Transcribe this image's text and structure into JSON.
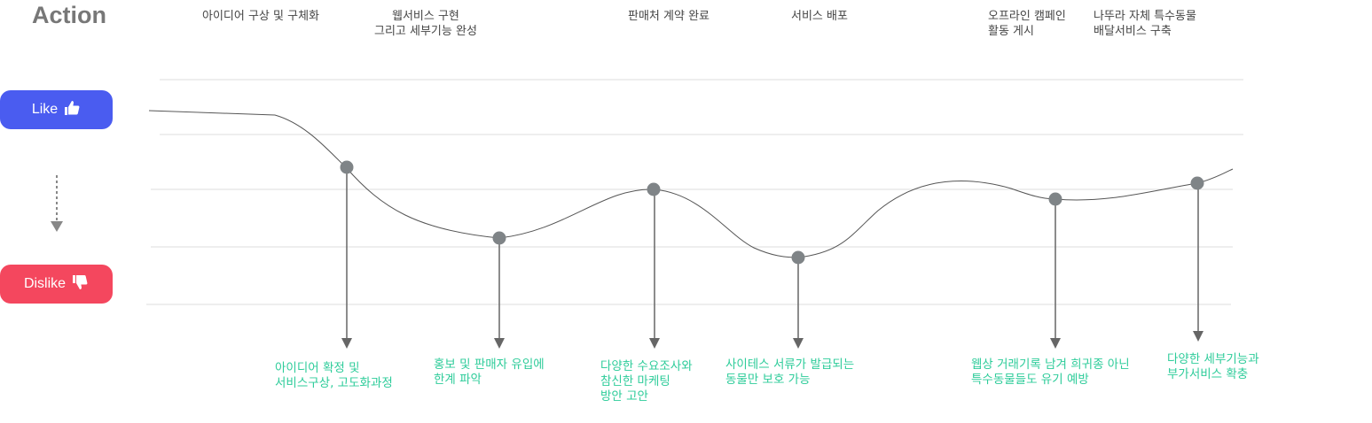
{
  "title": "Action",
  "like_button": {
    "label": "Like",
    "icon": "thumbs-up-icon",
    "color": "#4a5cf0"
  },
  "dislike_button": {
    "label": "Dislike",
    "icon": "thumbs-down-icon",
    "color": "#f4475e"
  },
  "accent_text_color": "#2ecc9a",
  "events": [
    {
      "lines": [
        "아이디어 구상 및 구체화"
      ]
    },
    {
      "lines": [
        "웹서비스 구현",
        "그리고 세부기능 완성"
      ]
    },
    {
      "lines": [
        "판매처 계약 완료"
      ]
    },
    {
      "lines": [
        "서비스 배포"
      ]
    },
    {
      "lines": [
        "오프라인 캠페인",
        "활동 게시"
      ]
    },
    {
      "lines": [
        "나뚜라 자체 특수동물",
        "배달서비스 구축"
      ]
    }
  ],
  "descriptions": [
    {
      "lines": [
        "아이디어 확정 및",
        "서비스구상, 고도화과정"
      ]
    },
    {
      "lines": [
        "홍보 및 판매자 유입에",
        "한계 파악"
      ]
    },
    {
      "lines": [
        "다양한 수요조사와",
        "참신한 마케팅",
        "방안 고안"
      ]
    },
    {
      "lines": [
        "사이테스 서류가 발급되는",
        "동물만 보호 가능"
      ]
    },
    {
      "lines": [
        "웹상 거래기록 남겨 희귀종 아닌",
        "특수동물들도 유기 예방"
      ]
    },
    {
      "lines": [
        "다양한 세부기능과",
        "부가서비스 확충"
      ]
    }
  ]
}
